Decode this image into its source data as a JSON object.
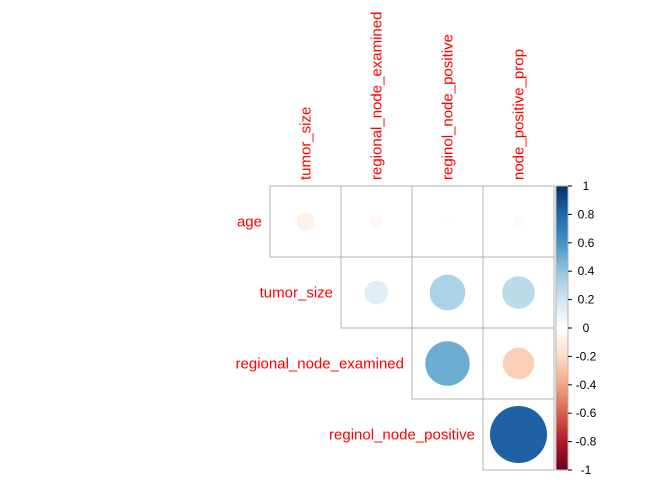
{
  "chart_data": {
    "type": "heatmap",
    "subtype": "correlation-circle-upper",
    "row_labels": [
      "age",
      "tumor_size",
      "regional_node_examined",
      "reginol_node_positive"
    ],
    "col_labels": [
      "tumor_size",
      "regional_node_examined",
      "reginol_node_positive",
      "node_positive_prop"
    ],
    "matrix": [
      [
        -0.08,
        -0.04,
        0.01,
        0.03
      ],
      [
        null,
        0.14,
        0.32,
        0.27
      ],
      [
        null,
        null,
        0.5,
        -0.25
      ],
      [
        null,
        null,
        null,
        0.82
      ]
    ],
    "colorbar": {
      "range": [
        -1,
        1
      ],
      "ticks": [
        "1",
        "0.8",
        "0.6",
        "0.4",
        "0.2",
        "0",
        "-0.2",
        "-0.4",
        "-0.6",
        "-0.8",
        "-1"
      ],
      "colors": [
        "#67001F",
        "#B2182B",
        "#D6604D",
        "#F4A582",
        "#FDDBC7",
        "#FFFFFF",
        "#D1E5F0",
        "#92C5DE",
        "#4393C3",
        "#2166AC",
        "#053061"
      ]
    },
    "label_color": "#FF0000",
    "grid": true
  }
}
